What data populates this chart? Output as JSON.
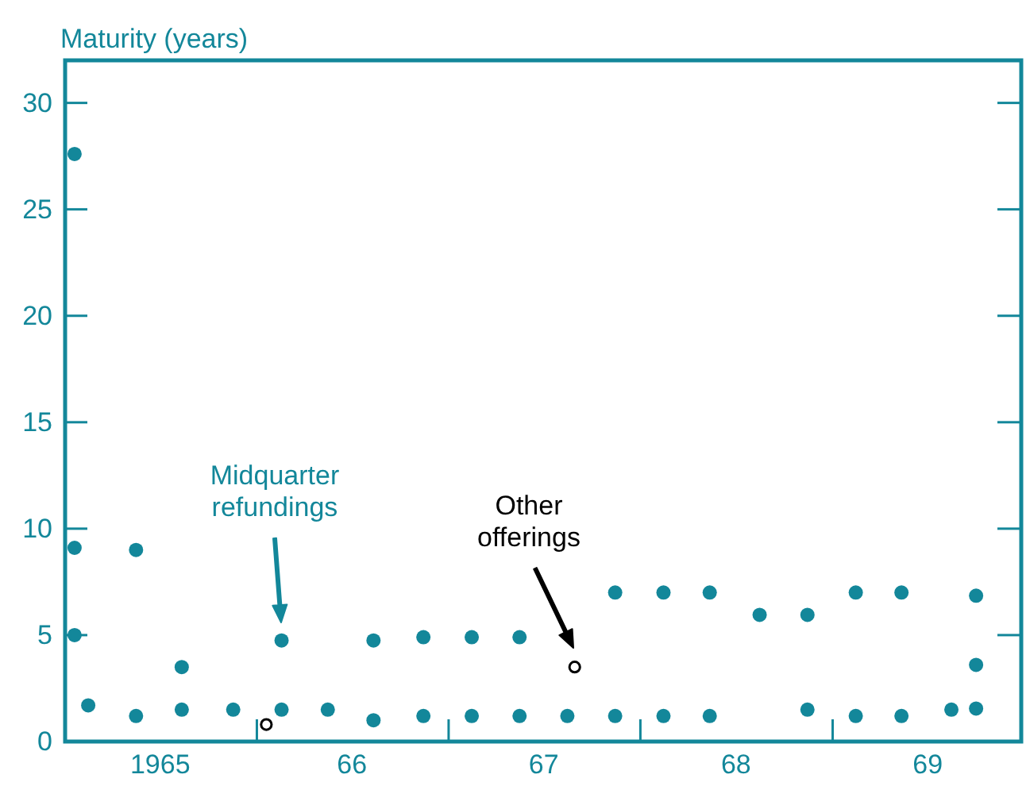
{
  "chart_data": {
    "type": "scatter",
    "ylabel": "Maturity (years)",
    "xlim": [
      "1965-01-01",
      "1970-01-01"
    ],
    "ylim": [
      0,
      32
    ],
    "xticks": [
      {
        "value": "1965-07-01",
        "label": "1965"
      },
      {
        "value": "1966-01-01",
        "label": null
      },
      {
        "value": "1966-07-01",
        "label": "66"
      },
      {
        "value": "1967-01-01",
        "label": null
      },
      {
        "value": "1967-07-01",
        "label": "67"
      },
      {
        "value": "1968-01-01",
        "label": null
      },
      {
        "value": "1968-07-01",
        "label": "68"
      },
      {
        "value": "1969-01-01",
        "label": null
      },
      {
        "value": "1969-07-01",
        "label": "69"
      }
    ],
    "yticks": [
      0,
      5,
      10,
      15,
      20,
      25,
      30
    ],
    "grid": false,
    "series": [
      {
        "color": "#13879a",
        "marker": "circle",
        "x": [
          "1965-01-19",
          "1965-01-19",
          "1965-01-19",
          "1965-02-14",
          "1965-05-16",
          "1965-05-16",
          "1965-08-11",
          "1965-08-11",
          "1965-11-17",
          "1966-02-17",
          "1966-02-17",
          "1966-05-16",
          "1966-08-11",
          "1966-08-11",
          "1966-11-14",
          "1966-11-14",
          "1967-02-14",
          "1967-02-14",
          "1967-05-16",
          "1967-05-16",
          "1967-08-15",
          "1967-11-14",
          "1967-11-14",
          "1968-02-14",
          "1968-02-14",
          "1968-05-12",
          "1968-05-12",
          "1968-08-15",
          "1968-11-14",
          "1968-11-14",
          "1969-02-14",
          "1969-02-14",
          "1969-05-12",
          "1969-05-12",
          "1969-08-15",
          "1969-10-01",
          "1969-10-01",
          "1969-10-01"
        ],
        "values": [
          27.6,
          9.1,
          5.0,
          1.7,
          9.0,
          1.2,
          3.5,
          1.5,
          1.5,
          4.75,
          1.5,
          1.5,
          4.75,
          1.0,
          4.9,
          1.2,
          4.9,
          1.2,
          4.9,
          1.2,
          1.2,
          7.0,
          1.2,
          7.0,
          1.2,
          7.0,
          1.2,
          5.95,
          5.95,
          1.5,
          7.0,
          1.2,
          7.0,
          1.2,
          1.5,
          6.85,
          3.6,
          1.55
        ]
      },
      {
        "color": "#000000",
        "marker": "circle-open",
        "x": [
          "1966-01-19",
          "1967-08-29"
        ],
        "values": [
          0.8,
          3.5
        ]
      }
    ],
    "annotations": [
      "Midquarter\nrefundings",
      "Other\nofferings"
    ]
  }
}
